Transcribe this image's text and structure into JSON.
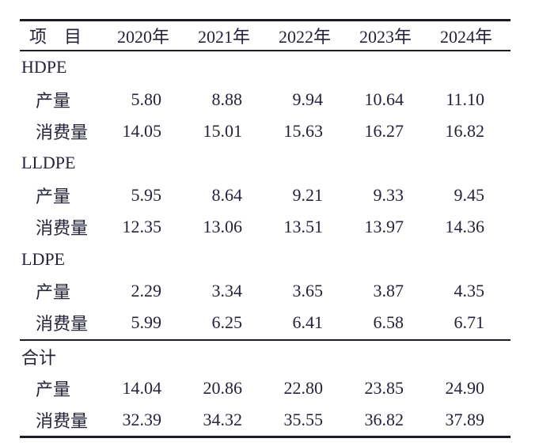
{
  "table": {
    "header": {
      "item_label": "项　目",
      "years": [
        "2020年",
        "2021年",
        "2022年",
        "2023年",
        "2024年"
      ]
    },
    "sections": [
      {
        "name": "HDPE",
        "rows": [
          {
            "label": "产量",
            "values": [
              "5.80",
              "8.88",
              "9.94",
              "10.64",
              "11.10"
            ]
          },
          {
            "label": "消费量",
            "values": [
              "14.05",
              "15.01",
              "15.63",
              "16.27",
              "16.82"
            ]
          }
        ]
      },
      {
        "name": "LLDPE",
        "rows": [
          {
            "label": "产量",
            "values": [
              "5.95",
              "8.64",
              "9.21",
              "9.33",
              "9.45"
            ]
          },
          {
            "label": "消费量",
            "values": [
              "12.35",
              "13.06",
              "13.51",
              "13.97",
              "14.36"
            ]
          }
        ]
      },
      {
        "name": "LDPE",
        "rows": [
          {
            "label": "产量",
            "values": [
              "2.29",
              "3.34",
              "3.65",
              "3.87",
              "4.35"
            ]
          },
          {
            "label": "消费量",
            "values": [
              "5.99",
              "6.25",
              "6.41",
              "6.58",
              "6.71"
            ]
          }
        ]
      },
      {
        "name": "合计",
        "rows": [
          {
            "label": "产量",
            "values": [
              "14.04",
              "20.86",
              "22.80",
              "23.85",
              "24.90"
            ]
          },
          {
            "label": "消费量",
            "values": [
              "32.39",
              "34.32",
              "35.55",
              "36.82",
              "37.89"
            ]
          }
        ]
      }
    ]
  }
}
